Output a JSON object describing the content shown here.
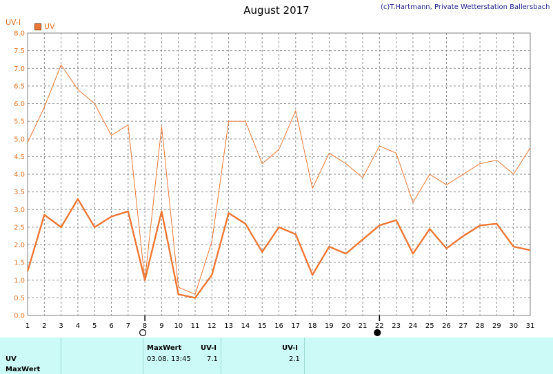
{
  "header": {
    "title": "August 2017",
    "credit": "(c)T.Hartmann, Private Wetterstation Ballersbach"
  },
  "chart_data": {
    "type": "line",
    "ylabel": "UV-I",
    "ylim": [
      0,
      8
    ],
    "yticks": [
      "0.0",
      "0.5",
      "1.0",
      "1.5",
      "2.0",
      "2.5",
      "3.0",
      "3.5",
      "4.0",
      "4.5",
      "5.0",
      "5.5",
      "6.0",
      "6.5",
      "7.0",
      "7.5",
      "8.0"
    ],
    "x": [
      1,
      2,
      3,
      4,
      5,
      6,
      7,
      8,
      9,
      10,
      11,
      12,
      13,
      14,
      15,
      16,
      17,
      18,
      19,
      20,
      21,
      22,
      23,
      24,
      25,
      26,
      27,
      28,
      29,
      30,
      31
    ],
    "grid": true,
    "legend": "top-left",
    "markers": {
      "open_circle_day": 8,
      "filled_circle_day": 22
    },
    "series": [
      {
        "name": "UV",
        "style": "thick",
        "color": "#ee7733",
        "values": [
          1.25,
          2.85,
          2.5,
          3.3,
          2.5,
          2.8,
          2.95,
          1.0,
          2.95,
          0.6,
          0.5,
          1.15,
          2.9,
          2.6,
          1.8,
          2.5,
          2.3,
          1.15,
          1.95,
          1.75,
          2.15,
          2.55,
          2.7,
          1.75,
          2.45,
          1.9,
          2.25,
          2.55,
          2.6,
          1.95,
          1.85
        ]
      },
      {
        "style": "thin",
        "color": "#ee7733",
        "values": [
          4.9,
          5.9,
          7.1,
          6.4,
          6.0,
          5.1,
          5.4,
          1.0,
          5.35,
          0.8,
          0.6,
          2.1,
          5.5,
          5.5,
          4.3,
          4.7,
          5.8,
          3.6,
          4.6,
          4.3,
          3.9,
          4.8,
          4.6,
          3.2,
          4.0,
          3.7,
          4.0,
          4.3,
          4.4,
          4.0,
          4.75
        ]
      }
    ]
  },
  "bottom_panel": {
    "row_label_uv": "UV",
    "row_label_maxwert": "MaxWert",
    "col_maxwert_header": "MaxWert",
    "col_uvi_header": "UV-I",
    "col_uvi_header2": "UV-I",
    "max_datetime": "03.08.  13:45",
    "max_value": "7.1",
    "second_value": "2.1"
  }
}
